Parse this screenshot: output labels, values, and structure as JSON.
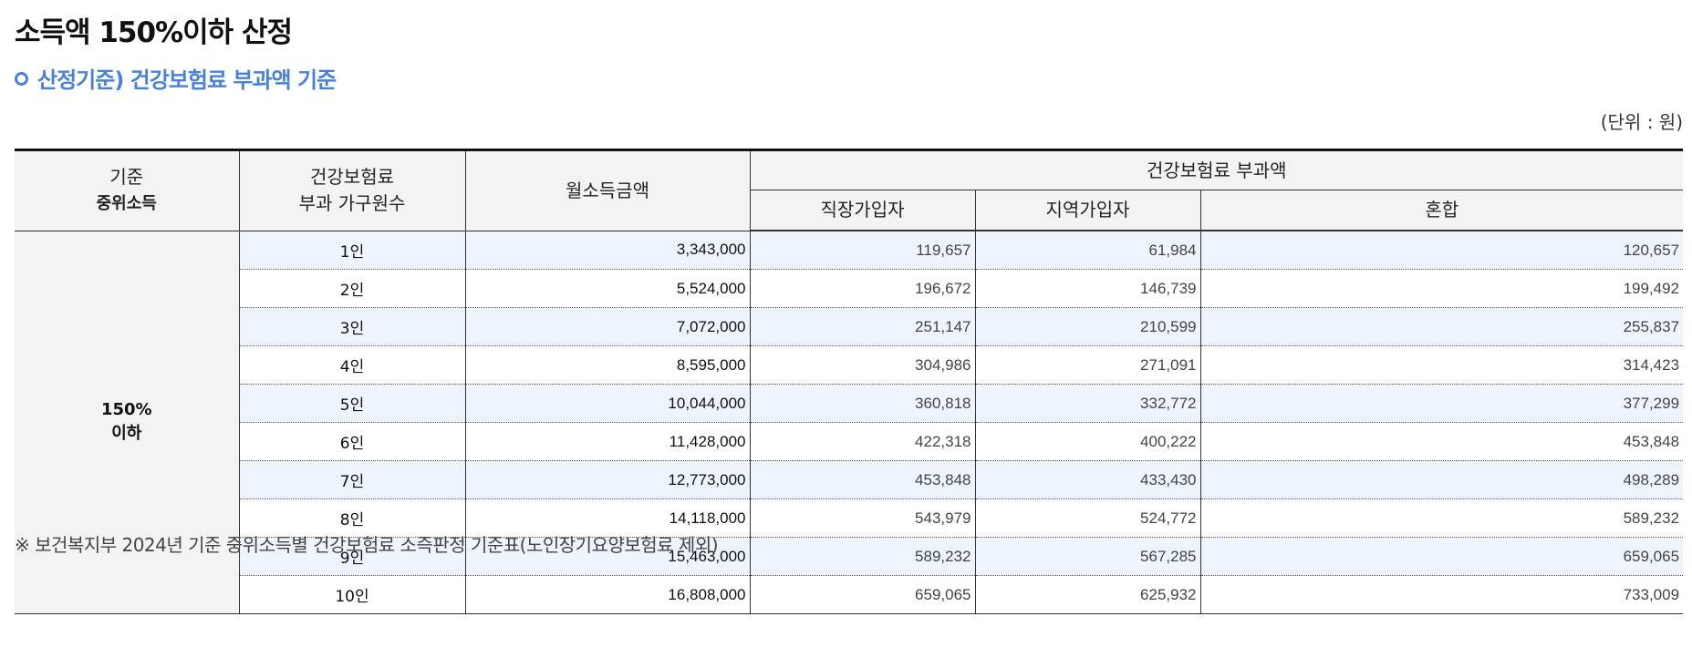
{
  "title": "소득액 150%이하 산정",
  "subtitle": "산정기준) 건강보험료 부과액 기준",
  "unit": "(단위 : 원)",
  "table": {
    "headers": {
      "criterion_line1": "기준",
      "criterion_line2": "중위소득",
      "household_line1": "건강보험료",
      "household_line2": "부과 가구원수",
      "income": "월소득금액",
      "premium_group": "건강보험료 부과액",
      "workplace": "직장가입자",
      "regional": "지역가입자",
      "mixed": "혼합"
    },
    "group_line1": "150%",
    "group_line2": "이하",
    "rows": [
      {
        "household": "1인",
        "income": "3,343,000",
        "workplace": "119,657",
        "regional": "61,984",
        "mixed": "120,657"
      },
      {
        "household": "2인",
        "income": "5,524,000",
        "workplace": "196,672",
        "regional": "146,739",
        "mixed": "199,492"
      },
      {
        "household": "3인",
        "income": "7,072,000",
        "workplace": "251,147",
        "regional": "210,599",
        "mixed": "255,837"
      },
      {
        "household": "4인",
        "income": "8,595,000",
        "workplace": "304,986",
        "regional": "271,091",
        "mixed": "314,423"
      },
      {
        "household": "5인",
        "income": "10,044,000",
        "workplace": "360,818",
        "regional": "332,772",
        "mixed": "377,299"
      },
      {
        "household": "6인",
        "income": "11,428,000",
        "workplace": "422,318",
        "regional": "400,222",
        "mixed": "453,848"
      },
      {
        "household": "7인",
        "income": "12,773,000",
        "workplace": "453,848",
        "regional": "433,430",
        "mixed": "498,289"
      },
      {
        "household": "8인",
        "income": "14,118,000",
        "workplace": "543,979",
        "regional": "524,772",
        "mixed": "589,232"
      },
      {
        "household": "9인",
        "income": "15,463,000",
        "workplace": "589,232",
        "regional": "567,285",
        "mixed": "659,065"
      },
      {
        "household": "10인",
        "income": "16,808,000",
        "workplace": "659,065",
        "regional": "625,932",
        "mixed": "733,009"
      }
    ]
  },
  "footnote": "※ 보건복지부 2024년 기준 중위소득별 건강보험료 소즉판정 기준표(노인장기요양보험료 제외)",
  "colors": {
    "accent": "#4a82d8",
    "header_bg": "#f3f3f3",
    "stripe_bg": "#eef4fc"
  }
}
